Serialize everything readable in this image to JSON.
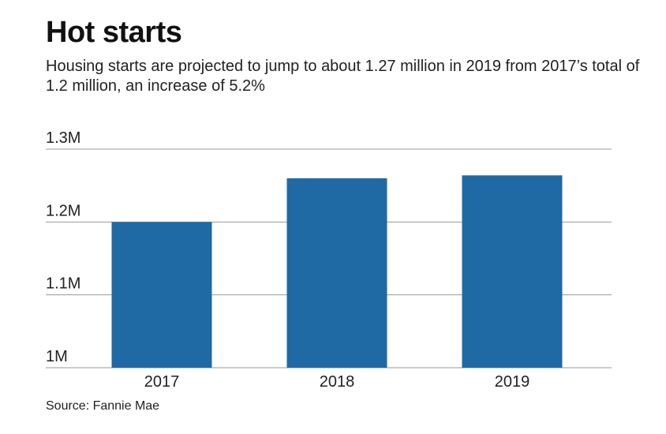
{
  "title": "Hot starts",
  "subtitle": "Housing starts are projected to jump to about 1.27 million in 2019 from 2017’s total of 1.2 million, an increase of 5.2%",
  "source": "Source: Fannie Mae",
  "colors": {
    "bar": "#1f6aa5",
    "grid": "#9a9a9a"
  },
  "chart_data": {
    "type": "bar",
    "categories": [
      "2017",
      "2018",
      "2019"
    ],
    "values": [
      1.2,
      1.26,
      1.264
    ],
    "ylim": [
      1.0,
      1.3
    ],
    "yticks": [
      {
        "value": 1.0,
        "label": "1M"
      },
      {
        "value": 1.1,
        "label": "1.1M"
      },
      {
        "value": 1.2,
        "label": "1.2M"
      },
      {
        "value": 1.3,
        "label": "1.3M"
      }
    ],
    "grid": true
  }
}
